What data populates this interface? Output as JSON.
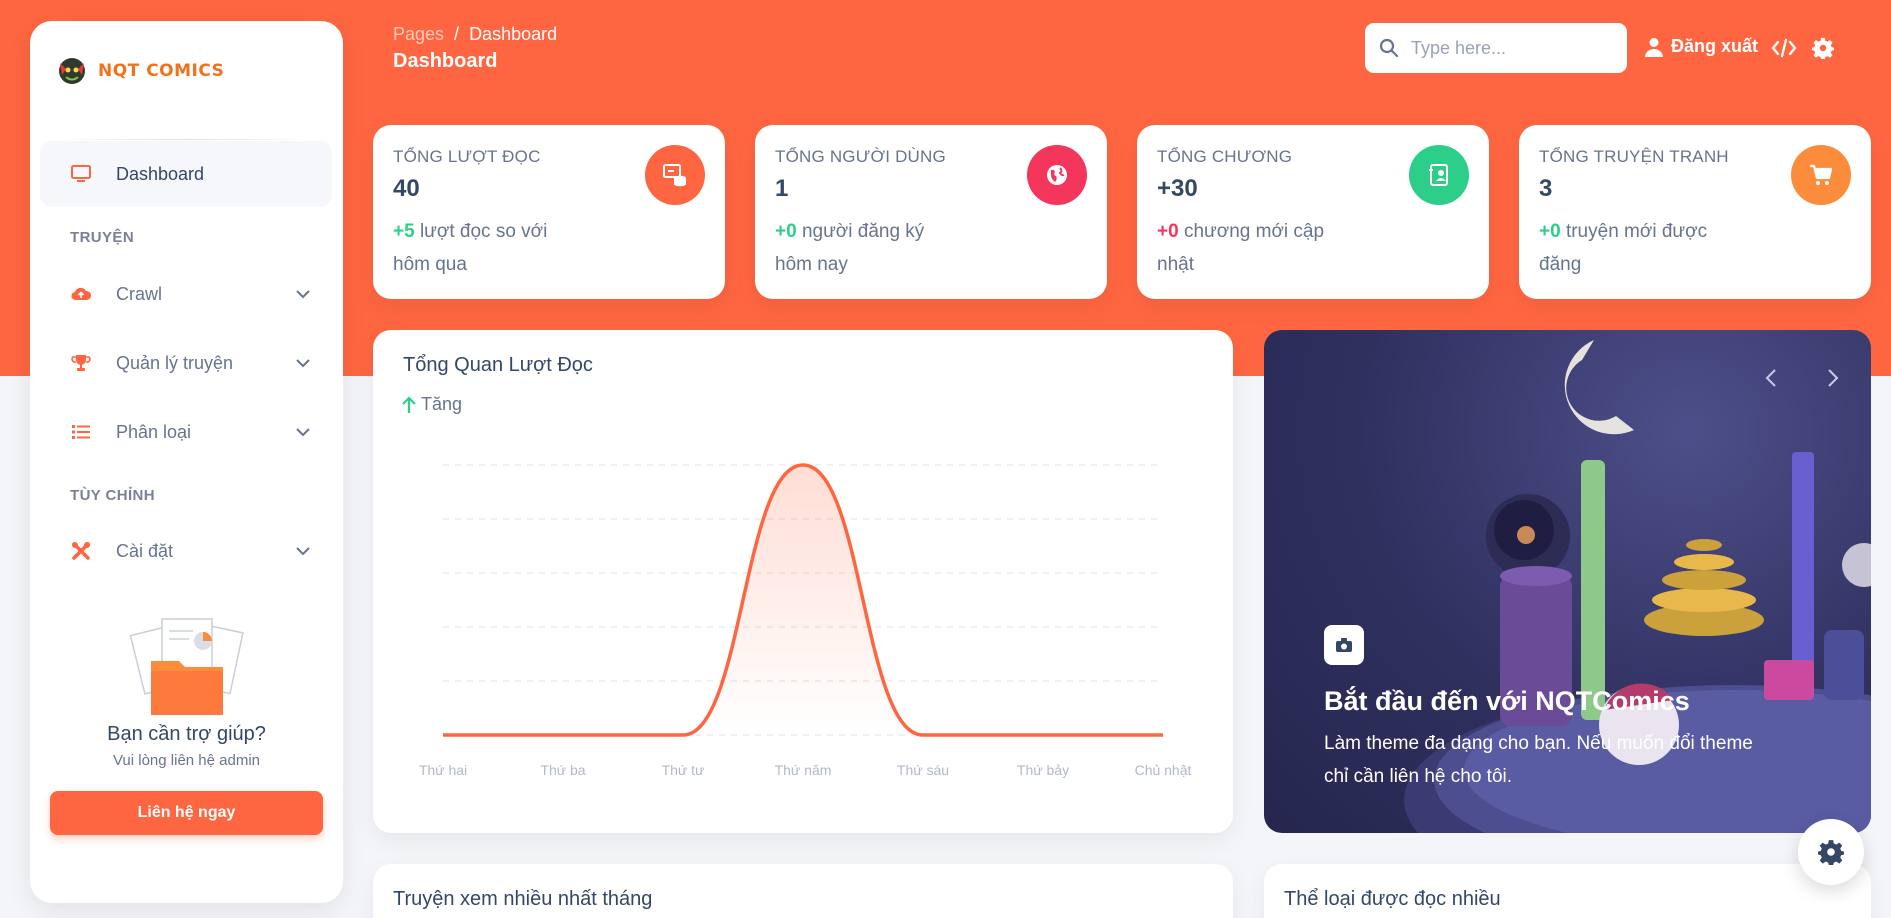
{
  "brand": {
    "name": "NQT COMICS"
  },
  "sidebar": {
    "items": [
      {
        "label": "Dashboard",
        "icon": "monitor-icon"
      },
      {
        "label": "Crawl",
        "icon": "cloud-upload-icon"
      },
      {
        "label": "Quản lý truyện",
        "icon": "trophy-icon"
      },
      {
        "label": "Phân loại",
        "icon": "list-icon"
      },
      {
        "label": "Cài đặt",
        "icon": "tools-icon"
      }
    ],
    "sections": [
      "TRUYỆN",
      "TÙY CHỈNH"
    ],
    "help": {
      "title": "Bạn cần trợ giúp?",
      "subtitle": "Vui lòng liên hệ admin",
      "button": "Liên hệ ngay"
    }
  },
  "header": {
    "breadcrumb": {
      "root": "Pages",
      "sep": "/",
      "current": "Dashboard"
    },
    "title": "Dashboard",
    "search_placeholder": "Type here...",
    "logout": "Đăng xuất"
  },
  "stats": [
    {
      "title": "TỔNG LƯỢT ĐỌC",
      "value": "40",
      "delta": "+5",
      "desc": "lượt đọc so với hôm qua",
      "color": "#fe6641"
    },
    {
      "title": "TỔNG NGƯỜI DÙNG",
      "value": "1",
      "delta": "+0",
      "desc": "người đăng ký hôm nay",
      "color": "#f5365c"
    },
    {
      "title": "TỔNG CHƯƠNG",
      "value": "+30",
      "delta": "+0",
      "desc": "chương mới cập nhật",
      "color": "#2dce89"
    },
    {
      "title": "TỔNG TRUYỆN TRANH",
      "value": "3",
      "delta": "+0",
      "desc": "truyện mới được đăng",
      "color": "#fb8c3c"
    }
  ],
  "chart": {
    "title": "Tổng Quan Lượt Đọc",
    "trend": "Tăng",
    "accent": "#fe6641"
  },
  "chart_data": {
    "type": "line",
    "title": "Tổng Quan Lượt Đọc",
    "categories": [
      "Thứ hai",
      "Thứ ba",
      "Thứ tư",
      "Thứ năm",
      "Thứ sáu",
      "Thứ bảy",
      "Chủ nhật"
    ],
    "values": [
      0,
      0,
      0,
      5,
      0,
      0,
      0
    ],
    "ylim": [
      0,
      5
    ],
    "grid": true
  },
  "carousel": {
    "title": "Bắt đầu đến với NQTComics",
    "text": "Làm theme đa dạng cho bạn. Nếu muốn đổi theme chỉ cần liên hệ cho tôi."
  },
  "bottom": {
    "left_title": "Truyện xem nhiều nhất tháng",
    "right_title": "Thể loại được đọc nhiều"
  }
}
